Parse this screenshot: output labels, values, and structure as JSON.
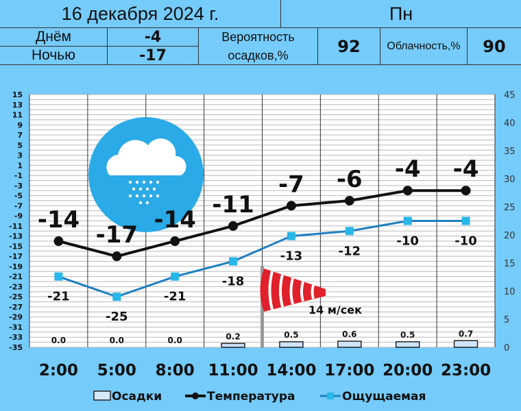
{
  "header": {
    "date": "16 декабря 2024 г.",
    "weekday": "Пн",
    "day_label": "Днём",
    "day_value": "-4",
    "night_label": "Ночью",
    "night_value": "-17",
    "precip_prob_label_1": "Вероятность",
    "precip_prob_label_2": "осадков,%",
    "precip_prob_value": "92",
    "cloud_label": "Облачность,%",
    "cloud_value": "90"
  },
  "colors": {
    "background": "#75cbfa",
    "temperature": "#111111",
    "feels": "#1f7fc0",
    "feels_marker": "#29b6e8",
    "icon_circle": "#2aaae6",
    "windsock": "#e0202a"
  },
  "weather_icon": "snow-cloud-icon",
  "wind": {
    "icon": "windsock-icon",
    "label": "14 м/сек"
  },
  "chart_data": {
    "type": "line",
    "categories": [
      "2:00",
      "5:00",
      "8:00",
      "11:00",
      "14:00",
      "17:00",
      "20:00",
      "23:00"
    ],
    "series": [
      {
        "name": "Температура",
        "values": [
          -14,
          -17,
          -14,
          -11,
          -7,
          -6,
          -4,
          -4
        ],
        "axis": "left"
      },
      {
        "name": "Ощущаемая",
        "values": [
          -21,
          -25,
          -21,
          -18,
          -13,
          -12,
          -10,
          -10
        ],
        "axis": "left"
      },
      {
        "name": "Осадки",
        "type": "bar",
        "values": [
          0.0,
          0.0,
          0.0,
          0.2,
          0.5,
          0.6,
          0.5,
          0.7
        ],
        "axis": "right"
      }
    ],
    "temp_labels": [
      "-14",
      "-17",
      "-14",
      "-11",
      "-7",
      "-6",
      "-4",
      "-4"
    ],
    "feels_labels": [
      "-21",
      "-25",
      "-21",
      "-18",
      "-13",
      "-12",
      "-10",
      "-10"
    ],
    "precip_labels": [
      "0.0",
      "0.0",
      "0.0",
      "0.2",
      "0.5",
      "0.6",
      "0.5",
      "0.7"
    ],
    "left_ylim": [
      -35,
      15
    ],
    "left_ticks": [
      "15",
      "13",
      "11",
      "9",
      "7",
      "5",
      "3",
      "1",
      "-1",
      "-3",
      "-5",
      "-7",
      "-9",
      "-11",
      "-13",
      "-15",
      "-17",
      "-19",
      "-21",
      "-23",
      "-25",
      "-27",
      "-29",
      "-31",
      "-33",
      "-35"
    ],
    "right_ylim": [
      0,
      45
    ],
    "right_ticks": [
      "45",
      "40",
      "35",
      "30",
      "25",
      "20",
      "15",
      "10",
      "5",
      "0"
    ],
    "grid": true,
    "legend_position": "bottom",
    "legend": [
      "Осадки",
      "Температура",
      "Ощущаемая"
    ]
  }
}
